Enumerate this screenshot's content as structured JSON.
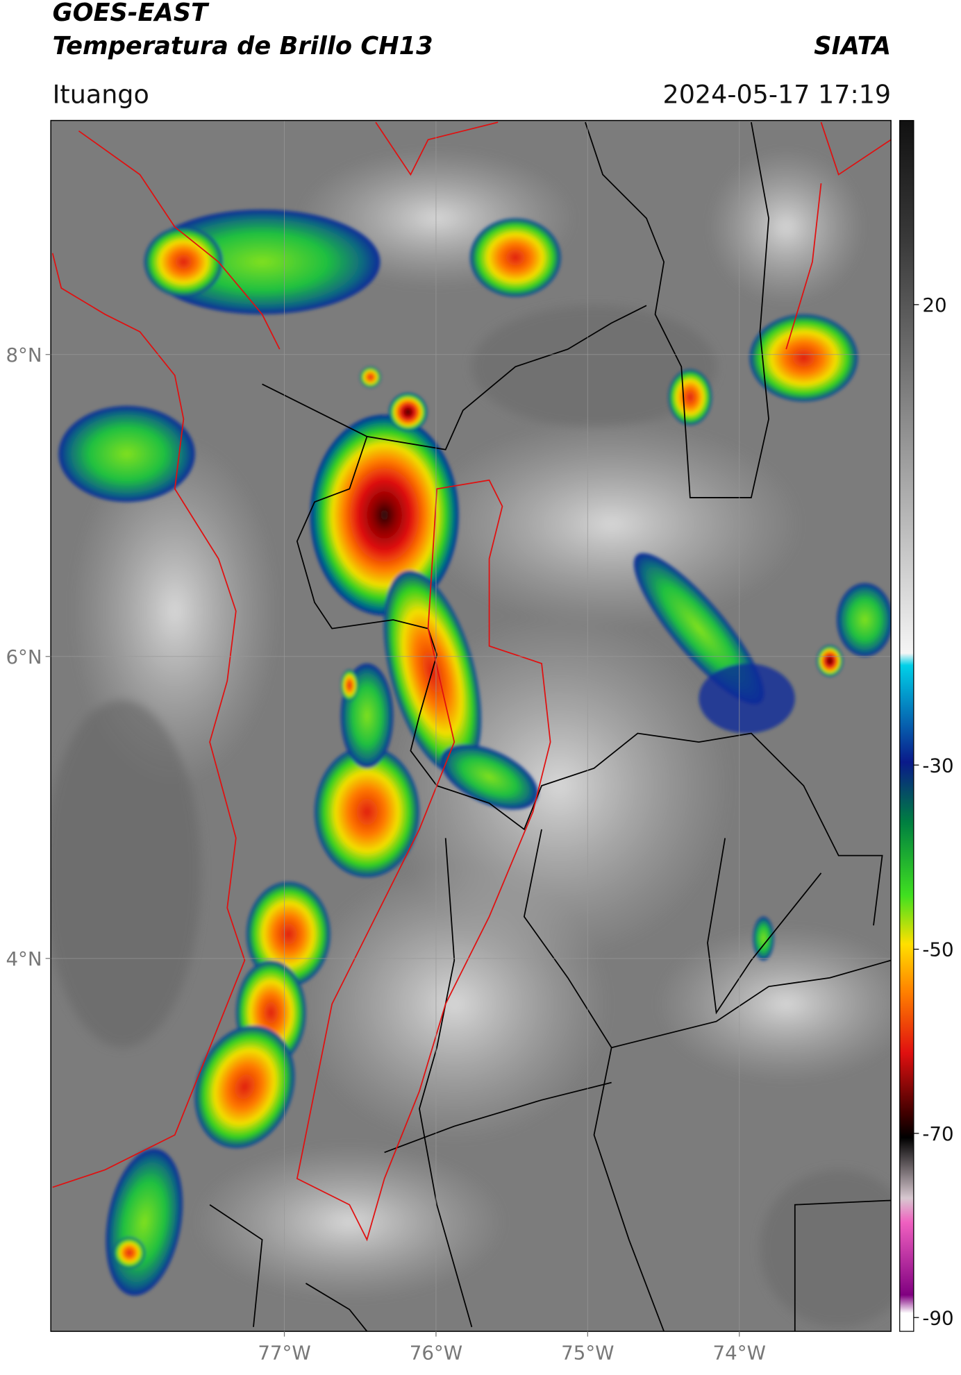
{
  "header": {
    "satellite": "GOES-EAST",
    "product": "Temperatura de Brillo CH13",
    "agency": "SIATA",
    "location": "Ituango",
    "datetime": "2024-05-17 17:19"
  },
  "map": {
    "xlim": [
      -78.54,
      -73.0
    ],
    "ylim": [
      1.53,
      9.55
    ],
    "xticks": [
      {
        "value": -77,
        "label": "77°W"
      },
      {
        "value": -76,
        "label": "76°W"
      },
      {
        "value": -75,
        "label": "75°W"
      },
      {
        "value": -74,
        "label": "74°W"
      }
    ],
    "yticks": [
      {
        "value": 8,
        "label": "8°N"
      },
      {
        "value": 6,
        "label": "6°N"
      },
      {
        "value": 4,
        "label": "4°N"
      }
    ],
    "grid": true
  },
  "colorbar": {
    "lim": [
      -91.5,
      40
    ],
    "ticks": [
      20,
      -30,
      -50,
      -70,
      -90
    ]
  }
}
